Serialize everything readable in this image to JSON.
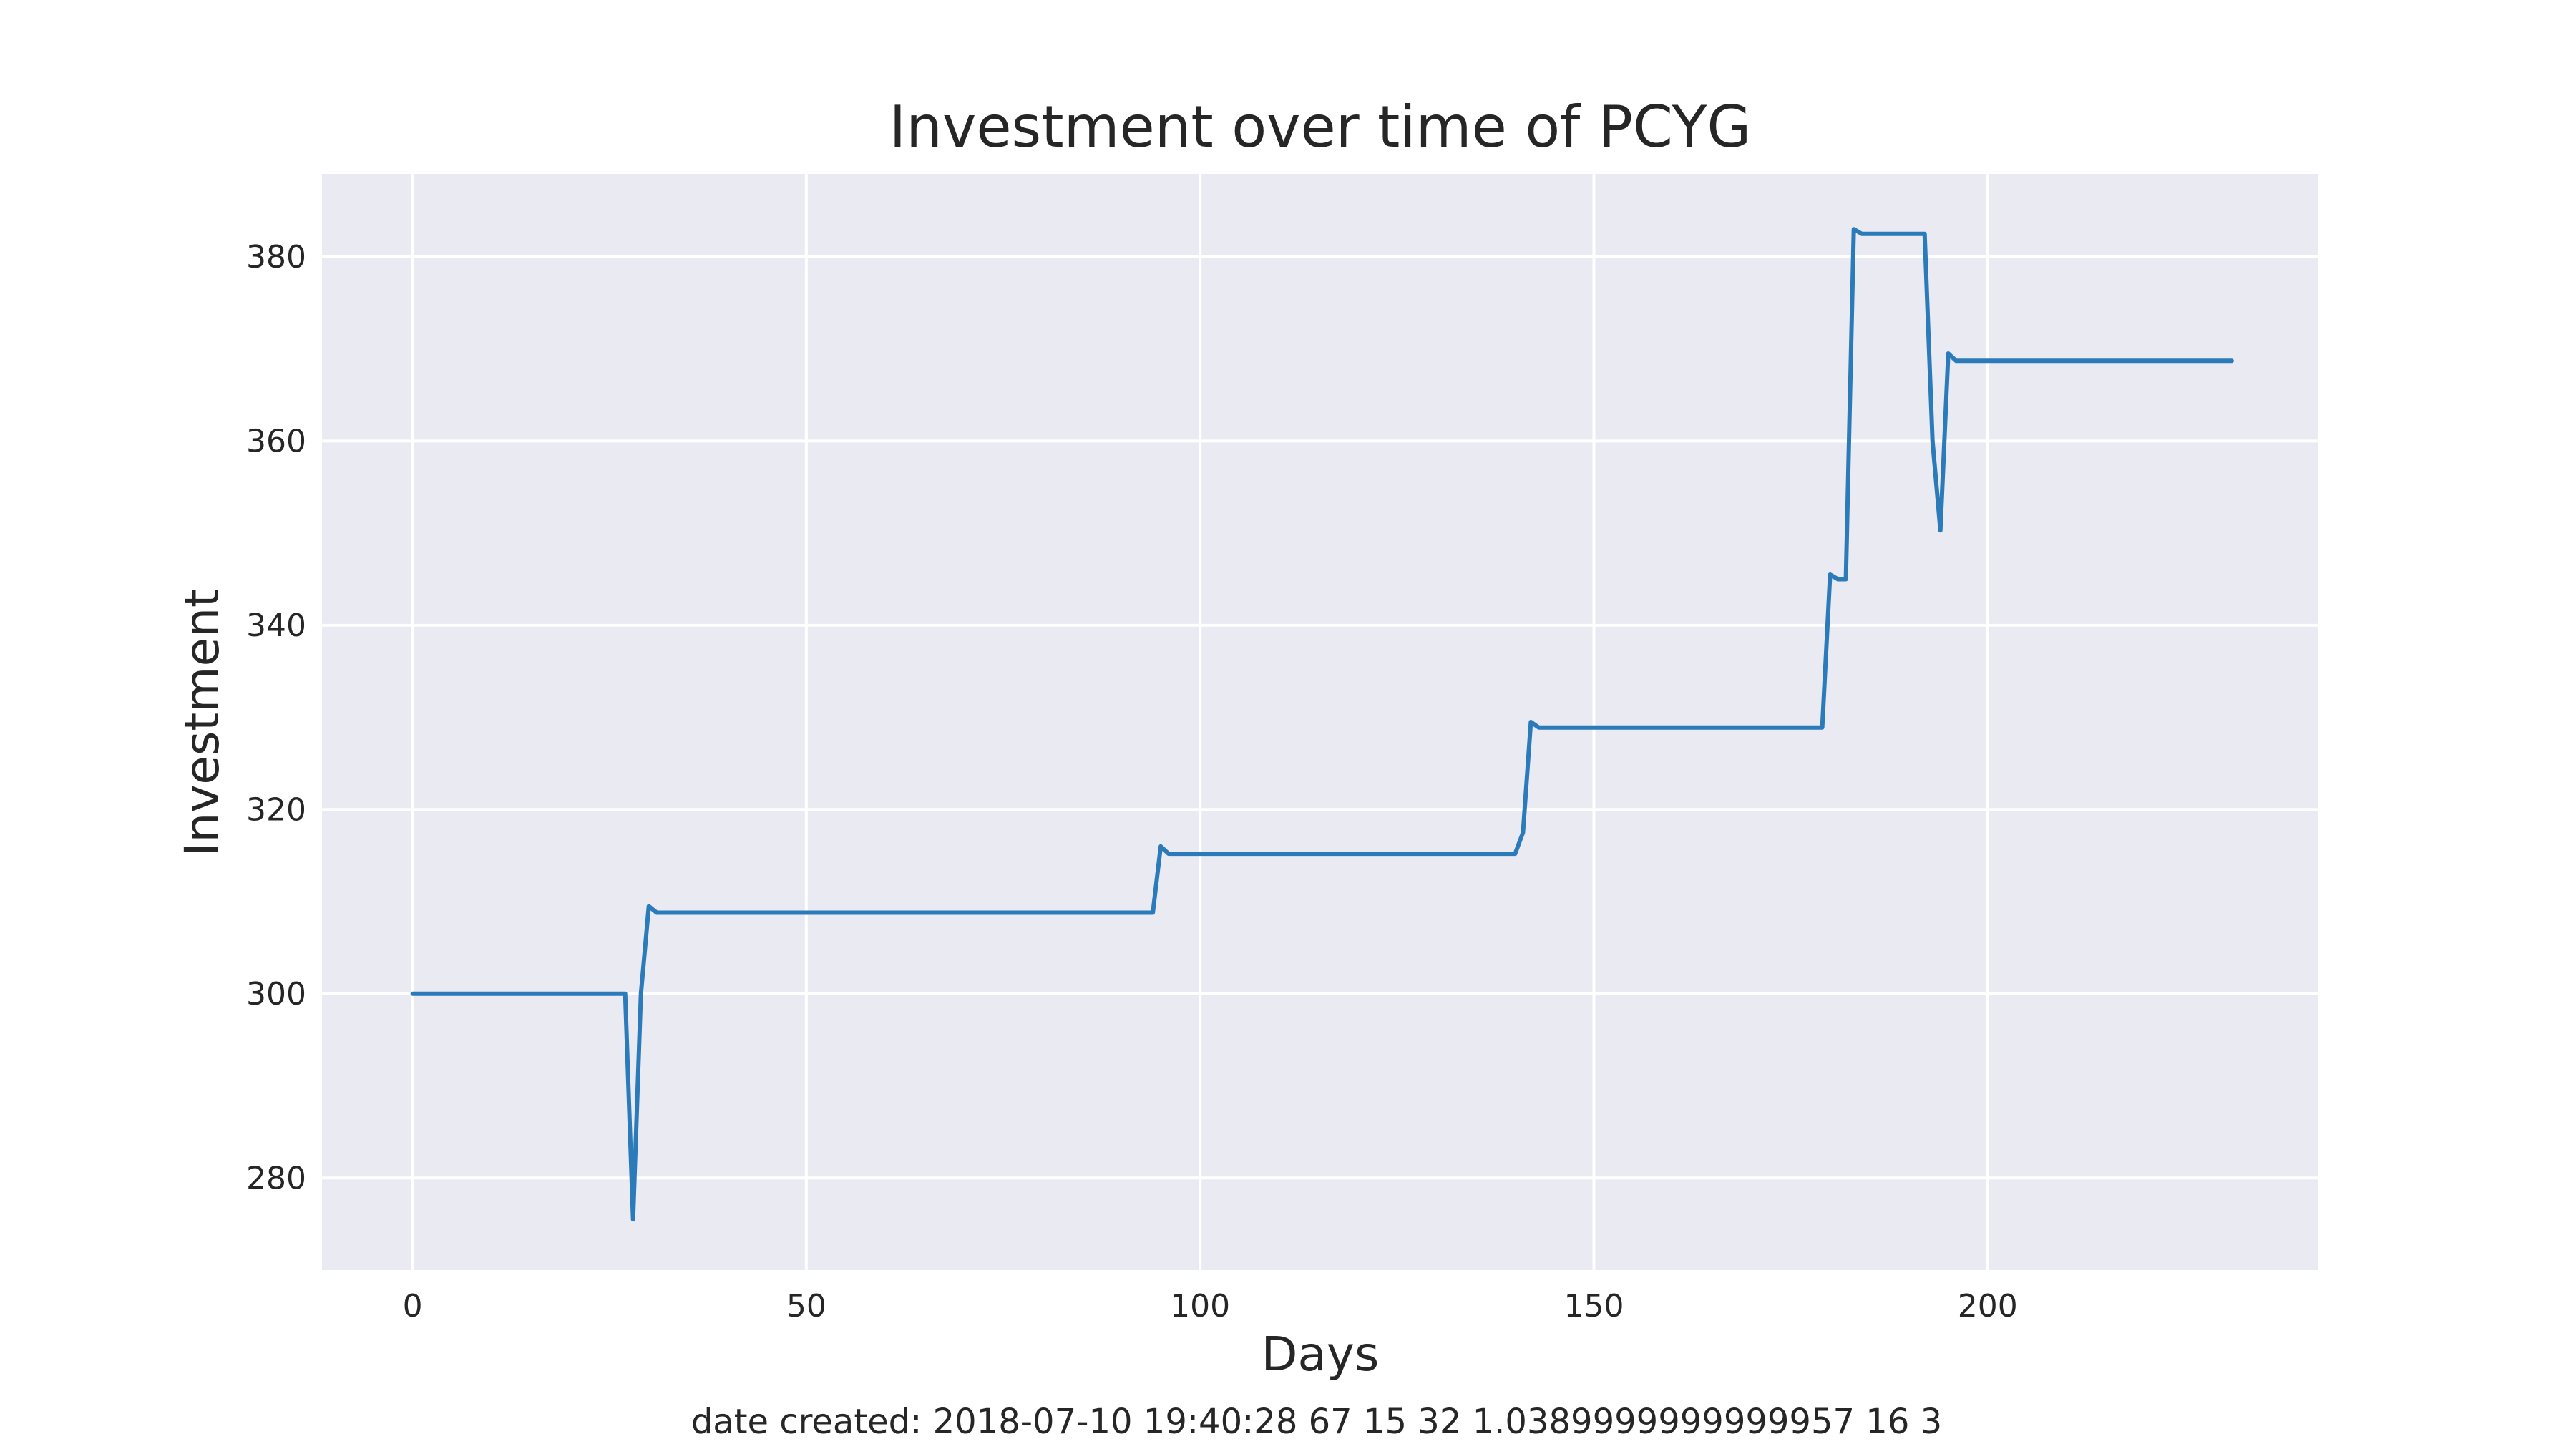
{
  "chart_data": {
    "type": "line",
    "title": "Investment over time of PCYG",
    "xlabel": "Days",
    "ylabel": "Investment",
    "xlim": [
      -11.5,
      242
    ],
    "ylim": [
      270,
      389
    ],
    "x_ticks": [
      0,
      50,
      100,
      150,
      200
    ],
    "y_ticks": [
      280,
      300,
      320,
      340,
      360,
      380
    ],
    "grid": true,
    "legend": "none",
    "colors": {
      "background": "#eaeaf2",
      "grid": "#ffffff",
      "line": "#2b7bba",
      "text": "#262626"
    },
    "series": [
      {
        "x": [
          0,
          27,
          28,
          29,
          30,
          31,
          94,
          95,
          96,
          140,
          141,
          142,
          143,
          179,
          180,
          181,
          182,
          183,
          184,
          192,
          193,
          194,
          195,
          196,
          231
        ],
        "y": [
          300,
          300,
          275.5,
          300,
          309.5,
          308.8,
          308.8,
          316,
          315.2,
          315.2,
          317.5,
          329.5,
          328.9,
          328.9,
          345.5,
          345,
          345,
          383,
          382.5,
          382.5,
          360,
          350.3,
          369.5,
          368.7,
          368.7
        ]
      }
    ]
  },
  "footer": "date created: 2018-07-10 19:40:28 67 15 32 1.0389999999999957 16 3"
}
